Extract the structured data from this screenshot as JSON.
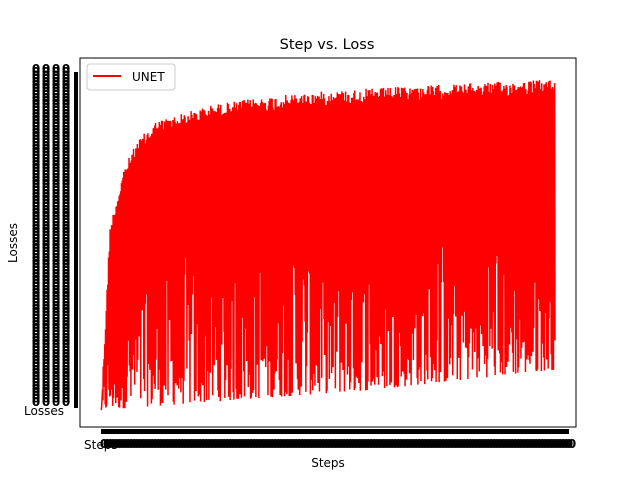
{
  "chart_data": {
    "type": "line",
    "title": "Step vs. Loss",
    "xlabel": "Steps",
    "ylabel": "Losses",
    "x_first_tick_label": "Steps",
    "y_first_tick_label": "Losses",
    "x_range": [
      0,
      1
    ],
    "y_range": [
      0,
      1
    ],
    "tick_labels_overlapping": true,
    "grid": false,
    "legend_position": "upper-left",
    "series": [
      {
        "name": "UNET",
        "color": "#ff0000",
        "n_points": 1200
      }
    ],
    "envelope_upper": {
      "x": [
        0.0,
        0.02,
        0.05,
        0.08,
        0.12,
        0.17,
        0.25,
        0.35,
        0.5,
        0.7,
        0.85,
        1.0
      ],
      "y": [
        0.0,
        0.55,
        0.72,
        0.8,
        0.86,
        0.88,
        0.91,
        0.93,
        0.95,
        0.965,
        0.975,
        0.985
      ]
    },
    "envelope_lower": {
      "x": [
        0.0,
        0.2,
        0.4,
        0.6,
        0.8,
        1.0
      ],
      "y": [
        0.0,
        0.02,
        0.04,
        0.06,
        0.09,
        0.12
      ]
    }
  }
}
